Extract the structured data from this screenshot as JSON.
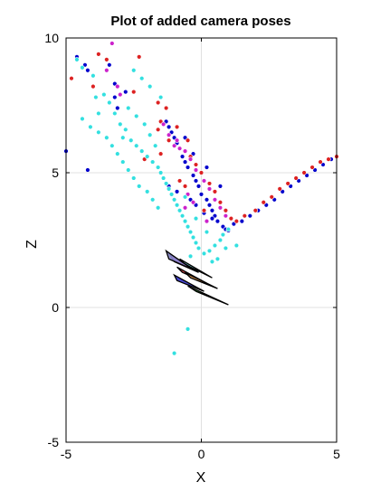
{
  "chart_data": {
    "type": "scatter",
    "title": "Plot of added camera poses",
    "xlabel": "X",
    "ylabel": "Z",
    "xlim": [
      -5,
      5
    ],
    "ylim": [
      -5,
      10
    ],
    "xticks": [
      -5,
      0,
      5
    ],
    "yticks": [
      -5,
      0,
      5,
      10
    ],
    "xtick_labels": [
      "-5",
      "0",
      "5"
    ],
    "ytick_labels": [
      "-5",
      "0",
      "5",
      "10"
    ],
    "grid": true,
    "legend": "none",
    "series": [
      {
        "color": "#0000cc",
        "marker": "dot",
        "points": [
          [
            -4.6,
            9.3
          ],
          [
            -4.3,
            9.0
          ],
          [
            -4.2,
            8.8
          ],
          [
            -3.4,
            9.0
          ],
          [
            -3.2,
            8.3
          ],
          [
            -3.2,
            7.8
          ],
          [
            -3.1,
            7.4
          ],
          [
            -2.8,
            8.0
          ],
          [
            -5.0,
            5.8
          ],
          [
            -4.2,
            5.1
          ],
          [
            -1.3,
            6.9
          ],
          [
            -1.2,
            6.7
          ],
          [
            -1.1,
            6.5
          ],
          [
            -1.0,
            6.3
          ],
          [
            -0.9,
            6.1
          ],
          [
            -0.8,
            5.9
          ],
          [
            -0.7,
            5.6
          ],
          [
            -0.6,
            5.4
          ],
          [
            -0.5,
            5.2
          ],
          [
            -0.3,
            4.9
          ],
          [
            -0.2,
            4.7
          ],
          [
            -0.1,
            4.5
          ],
          [
            0.0,
            4.2
          ],
          [
            0.2,
            4.0
          ],
          [
            0.3,
            3.8
          ],
          [
            0.4,
            3.6
          ],
          [
            0.5,
            3.4
          ],
          [
            0.6,
            3.2
          ],
          [
            0.8,
            3.0
          ],
          [
            0.9,
            2.9
          ],
          [
            1.0,
            2.85
          ],
          [
            1.2,
            3.1
          ],
          [
            1.5,
            3.2
          ],
          [
            1.8,
            3.4
          ],
          [
            2.1,
            3.6
          ],
          [
            2.4,
            3.8
          ],
          [
            2.7,
            4.0
          ],
          [
            3.0,
            4.3
          ],
          [
            3.3,
            4.5
          ],
          [
            3.6,
            4.7
          ],
          [
            3.9,
            4.9
          ],
          [
            4.2,
            5.1
          ],
          [
            4.5,
            5.3
          ],
          [
            4.8,
            5.5
          ],
          [
            -0.4,
            4.0
          ],
          [
            -0.2,
            3.8
          ],
          [
            0.1,
            3.5
          ],
          [
            -0.6,
            6.3
          ],
          [
            -0.3,
            5.7
          ],
          [
            0.2,
            5.2
          ],
          [
            0.7,
            4.5
          ],
          [
            -1.2,
            4.5
          ],
          [
            -0.9,
            4.3
          ],
          [
            0.4,
            3.3
          ]
        ]
      },
      {
        "color": "#dd2222",
        "marker": "dot",
        "points": [
          [
            -4.8,
            8.5
          ],
          [
            -4.0,
            8.2
          ],
          [
            -3.8,
            9.4
          ],
          [
            -3.5,
            9.2
          ],
          [
            -2.5,
            8.0
          ],
          [
            -2.3,
            9.3
          ],
          [
            -1.6,
            7.6
          ],
          [
            -1.3,
            7.4
          ],
          [
            -1.6,
            6.6
          ],
          [
            -1.2,
            6.2
          ],
          [
            -1.5,
            5.7
          ],
          [
            -0.9,
            6.7
          ],
          [
            -0.5,
            6.2
          ],
          [
            -0.4,
            5.6
          ],
          [
            -0.2,
            5.3
          ],
          [
            0.0,
            5.0
          ],
          [
            0.3,
            4.6
          ],
          [
            0.5,
            4.3
          ],
          [
            0.7,
            3.9
          ],
          [
            0.9,
            3.6
          ],
          [
            1.1,
            3.3
          ],
          [
            1.3,
            3.2
          ],
          [
            1.6,
            3.4
          ],
          [
            2.0,
            3.6
          ],
          [
            2.3,
            3.9
          ],
          [
            2.6,
            4.1
          ],
          [
            2.9,
            4.4
          ],
          [
            3.2,
            4.6
          ],
          [
            3.5,
            4.8
          ],
          [
            3.8,
            5.0
          ],
          [
            4.1,
            5.2
          ],
          [
            4.4,
            5.4
          ],
          [
            4.7,
            5.5
          ],
          [
            5.0,
            5.6
          ],
          [
            -0.6,
            4.5
          ],
          [
            -1.5,
            6.9
          ],
          [
            -0.8,
            4.7
          ],
          [
            0.1,
            3.6
          ],
          [
            -2.1,
            5.5
          ]
        ]
      },
      {
        "color": "#cc22cc",
        "marker": "dot",
        "points": [
          [
            -3.5,
            8.8
          ],
          [
            -3.3,
            9.8
          ],
          [
            -3.1,
            8.2
          ],
          [
            -3.0,
            7.9
          ],
          [
            -1.4,
            6.8
          ],
          [
            -1.2,
            6.4
          ],
          [
            -0.9,
            6.2
          ],
          [
            -0.8,
            5.9
          ],
          [
            -0.6,
            5.8
          ],
          [
            -0.4,
            5.5
          ],
          [
            -0.2,
            5.1
          ],
          [
            0.1,
            4.7
          ],
          [
            0.3,
            4.4
          ],
          [
            0.5,
            4.0
          ],
          [
            0.7,
            3.7
          ],
          [
            0.9,
            3.4
          ],
          [
            -0.3,
            3.9
          ],
          [
            -0.5,
            4.2
          ],
          [
            0.2,
            3.2
          ],
          [
            -1.0,
            6.0
          ],
          [
            -0.6,
            3.7
          ]
        ]
      },
      {
        "color": "#33e0e0",
        "marker": "dot",
        "points": [
          [
            -4.6,
            9.2
          ],
          [
            -4.4,
            8.9
          ],
          [
            -4.0,
            8.6
          ],
          [
            -3.9,
            7.8
          ],
          [
            -3.6,
            7.9
          ],
          [
            -3.4,
            7.6
          ],
          [
            -3.2,
            7.2
          ],
          [
            -3.0,
            6.8
          ],
          [
            -2.8,
            6.6
          ],
          [
            -2.6,
            6.2
          ],
          [
            -2.4,
            6.0
          ],
          [
            -2.2,
            5.8
          ],
          [
            -2.0,
            5.6
          ],
          [
            -1.8,
            5.4
          ],
          [
            -1.6,
            5.2
          ],
          [
            -1.5,
            5.0
          ],
          [
            -1.4,
            4.8
          ],
          [
            -1.3,
            4.6
          ],
          [
            -1.2,
            4.4
          ],
          [
            -1.1,
            4.2
          ],
          [
            -1.0,
            4.0
          ],
          [
            -0.9,
            3.8
          ],
          [
            -0.8,
            3.6
          ],
          [
            -0.7,
            3.4
          ],
          [
            -0.6,
            3.2
          ],
          [
            -0.5,
            3.0
          ],
          [
            -0.4,
            2.8
          ],
          [
            -0.3,
            2.6
          ],
          [
            -0.2,
            2.4
          ],
          [
            -0.1,
            2.2
          ],
          [
            0.1,
            2.0
          ],
          [
            0.3,
            2.1
          ],
          [
            0.5,
            2.3
          ],
          [
            0.7,
            2.5
          ],
          [
            0.8,
            2.7
          ],
          [
            1.0,
            2.9
          ],
          [
            -3.8,
            6.5
          ],
          [
            -3.5,
            6.3
          ],
          [
            -3.3,
            6.0
          ],
          [
            -3.1,
            5.7
          ],
          [
            -2.9,
            5.4
          ],
          [
            -2.7,
            5.1
          ],
          [
            -2.5,
            4.8
          ],
          [
            -2.3,
            4.5
          ],
          [
            -2.7,
            7.4
          ],
          [
            -2.4,
            7.1
          ],
          [
            -2.1,
            6.8
          ],
          [
            -1.9,
            6.4
          ],
          [
            -2.5,
            8.8
          ],
          [
            -2.2,
            8.5
          ],
          [
            -1.9,
            8.2
          ],
          [
            -1.5,
            7.8
          ],
          [
            -1.7,
            6.0
          ],
          [
            -2.0,
            4.3
          ],
          [
            -1.8,
            4.0
          ],
          [
            -1.6,
            3.7
          ],
          [
            -0.4,
            1.9
          ],
          [
            0.4,
            1.7
          ],
          [
            0.6,
            1.8
          ],
          [
            0.9,
            2.2
          ],
          [
            1.3,
            2.3
          ],
          [
            -0.5,
            -0.8
          ],
          [
            -1.0,
            -1.7
          ],
          [
            -4.4,
            7.0
          ],
          [
            -4.1,
            6.7
          ],
          [
            -3.8,
            7.2
          ],
          [
            -2.9,
            6.3
          ],
          [
            -0.6,
            4.1
          ],
          [
            -0.2,
            3.3
          ],
          [
            0.2,
            2.8
          ]
        ]
      }
    ],
    "cameras": [
      {
        "fill": "#33cc33",
        "x": [
          -0.2,
          -0.5,
          1.0
        ],
        "z": [
          0.6,
          0.8,
          0.1
        ]
      },
      {
        "fill": "#cc3333",
        "x": [
          -0.7,
          -0.9,
          0.2
        ],
        "z": [
          1.3,
          1.5,
          0.9
        ]
      },
      {
        "fill": "#3333cc",
        "x": [
          -0.9,
          -1.0,
          0.1
        ],
        "z": [
          1.0,
          1.2,
          0.6
        ]
      },
      {
        "fill": "#66cccc",
        "x": [
          -0.6,
          -0.8,
          0.4
        ],
        "z": [
          1.6,
          1.8,
          1.1
        ]
      },
      {
        "fill": "#cc33cc",
        "x": [
          -1.0,
          -1.2,
          -0.1
        ],
        "z": [
          1.7,
          2.0,
          1.3
        ]
      },
      {
        "fill": "#cc8844",
        "x": [
          -0.4,
          -0.6,
          0.6
        ],
        "z": [
          1.1,
          1.3,
          0.7
        ]
      },
      {
        "fill": "#8888cc",
        "x": [
          -1.2,
          -1.3,
          -0.3
        ],
        "z": [
          1.8,
          2.1,
          1.4
        ]
      }
    ]
  }
}
